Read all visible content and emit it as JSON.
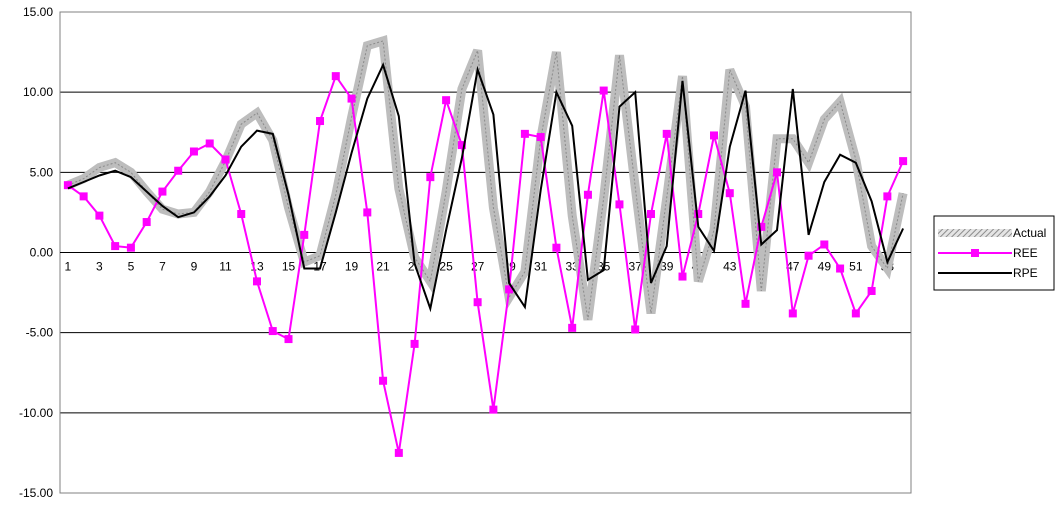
{
  "chart_data": {
    "type": "line",
    "title": "",
    "xlabel": "",
    "ylabel": "",
    "x": [
      1,
      2,
      3,
      4,
      5,
      6,
      7,
      8,
      9,
      10,
      11,
      12,
      13,
      14,
      15,
      16,
      17,
      18,
      19,
      20,
      21,
      22,
      23,
      24,
      25,
      26,
      27,
      28,
      29,
      30,
      31,
      32,
      33,
      34,
      35,
      36,
      37,
      38,
      39,
      40,
      41,
      42,
      43,
      44,
      45,
      46,
      47,
      48,
      49,
      50,
      51,
      52,
      53,
      54
    ],
    "x_tick_labels": [
      "1",
      "3",
      "5",
      "7",
      "9",
      "11",
      "13",
      "15",
      "17",
      "19",
      "21",
      "23",
      "25",
      "27",
      "29",
      "31",
      "33",
      "35",
      "37",
      "39",
      "41",
      "43",
      "45",
      "47",
      "49",
      "51",
      "53"
    ],
    "y_tick_labels": [
      "15.00",
      "10.00",
      "5.00",
      "0.00",
      "-5.00",
      "-10.00",
      "-15.00"
    ],
    "ylim": [
      -15,
      15
    ],
    "grid": "horizontal",
    "legend_position": "right",
    "series": [
      {
        "name": "Actual",
        "color": "#a6a6a6",
        "style": "thick-hatched",
        "values": [
          4.2,
          4.6,
          5.3,
          5.6,
          5.0,
          3.8,
          2.7,
          2.4,
          2.5,
          3.8,
          5.7,
          8.0,
          8.7,
          7.0,
          2.8,
          -0.6,
          -0.2,
          3.6,
          8.4,
          12.9,
          13.2,
          4.0,
          -0.3,
          -1.8,
          3.8,
          10.2,
          12.6,
          2.8,
          -2.8,
          -1.2,
          7.1,
          12.5,
          2.3,
          -4.2,
          3.4,
          12.3,
          4.1,
          -3.8,
          3.4,
          11.0,
          -1.8,
          1.4,
          11.4,
          9.1,
          -2.4,
          7.1,
          7.1,
          5.6,
          8.3,
          9.4,
          5.8,
          0.4,
          -1.0,
          3.7
        ]
      },
      {
        "name": "REE",
        "color": "#ff00ff",
        "marker": "square",
        "values": [
          4.2,
          3.5,
          2.3,
          0.4,
          0.3,
          1.9,
          3.8,
          5.1,
          6.3,
          6.8,
          5.8,
          2.4,
          -1.8,
          -4.9,
          -5.4,
          1.1,
          8.2,
          11.0,
          9.6,
          2.5,
          -8.0,
          -12.5,
          -5.7,
          4.7,
          9.5,
          6.7,
          -3.1,
          -9.8,
          -2.3,
          7.4,
          7.2,
          0.3,
          -4.7,
          3.6,
          10.1,
          3.0,
          -4.8,
          2.4,
          7.4,
          -1.5,
          2.4,
          7.3,
          3.7,
          -3.2,
          1.6,
          5.0,
          -3.8,
          -0.2,
          0.5,
          -1.0,
          -3.8,
          -2.4,
          3.5,
          5.7
        ]
      },
      {
        "name": "RPE",
        "color": "#000000",
        "values": [
          4.0,
          4.4,
          4.8,
          5.1,
          4.7,
          3.8,
          2.9,
          2.2,
          2.5,
          3.5,
          4.8,
          6.6,
          7.6,
          7.4,
          3.6,
          -1.0,
          -1.0,
          2.5,
          6.2,
          9.6,
          11.7,
          8.5,
          -0.7,
          -3.5,
          1.4,
          5.9,
          11.4,
          8.6,
          -1.9,
          -3.4,
          3.9,
          10.0,
          7.9,
          -1.7,
          -1.1,
          9.1,
          10.0,
          -1.9,
          0.4,
          10.7,
          1.6,
          0.1,
          6.6,
          10.1,
          0.5,
          1.4,
          10.2,
          1.1,
          4.4,
          6.1,
          5.6,
          3.2,
          -0.6,
          1.5
        ]
      }
    ]
  }
}
